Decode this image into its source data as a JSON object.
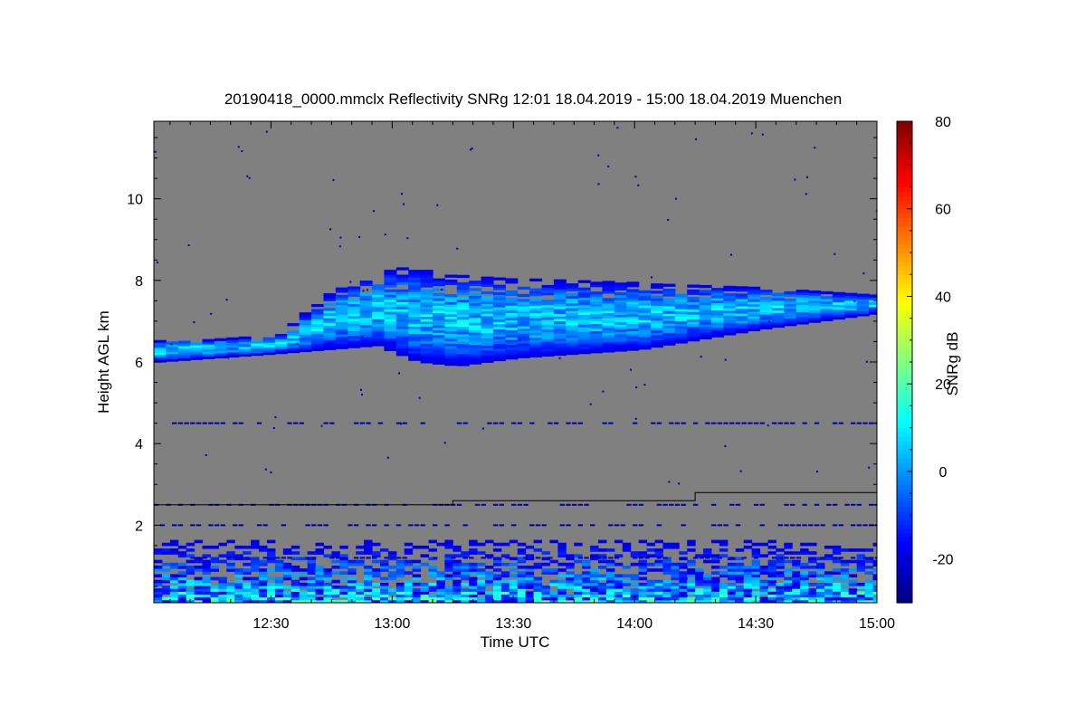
{
  "chart_data": {
    "type": "heatmap",
    "title": "20190418_0000.mmclx Reflectivity SNRg   12:01 18.04.2019 - 15:00 18.04.2019 Muenchen",
    "xlabel": "Time UTC",
    "ylabel": "Height AGL km",
    "xlim": [
      "12:01",
      "15:00"
    ],
    "ylim": [
      0.1,
      11.9
    ],
    "x_ticks": [
      "12:30",
      "13:00",
      "13:30",
      "14:00",
      "14:30",
      "15:00"
    ],
    "y_ticks": [
      2,
      4,
      6,
      8,
      10
    ],
    "colorbar": {
      "label": "SNRg dB",
      "range": [
        -30,
        80
      ],
      "ticks": [
        -20,
        0,
        20,
        40,
        60,
        80
      ],
      "colormap": "jet"
    },
    "background_color": "#808080",
    "cloud_layer": {
      "description_values": "main echo band of cirrus cloud",
      "base_km": [
        [
          "12:01",
          6.0
        ],
        [
          "12:30",
          6.2
        ],
        [
          "12:55",
          6.4
        ],
        [
          "13:05",
          6.0
        ],
        [
          "13:15",
          5.9
        ],
        [
          "13:30",
          6.1
        ],
        [
          "14:00",
          6.3
        ],
        [
          "14:30",
          6.8
        ],
        [
          "15:00",
          7.2
        ]
      ],
      "top_km": [
        [
          "12:01",
          6.5
        ],
        [
          "12:30",
          6.6
        ],
        [
          "12:45",
          7.8
        ],
        [
          "13:00",
          8.3
        ],
        [
          "13:15",
          8.1
        ],
        [
          "13:30",
          8.0
        ],
        [
          "14:00",
          7.9
        ],
        [
          "14:30",
          7.8
        ],
        [
          "15:00",
          7.6
        ]
      ],
      "snr_db_range": [
        -20,
        15
      ]
    },
    "clutter_layer": {
      "top_km": 1.6,
      "snr_db_range": [
        -20,
        25
      ]
    },
    "reference_line_km": [
      [
        "12:01",
        2.5
      ],
      [
        "13:15",
        2.5
      ],
      [
        "13:15",
        2.6
      ],
      [
        "14:15",
        2.6
      ],
      [
        "14:15",
        2.8
      ],
      [
        "15:00",
        2.8
      ]
    ],
    "horizontal_streak_heights_km": [
      4.5,
      2.5,
      2.0,
      1.2
    ],
    "grid": false,
    "legend": "none"
  }
}
